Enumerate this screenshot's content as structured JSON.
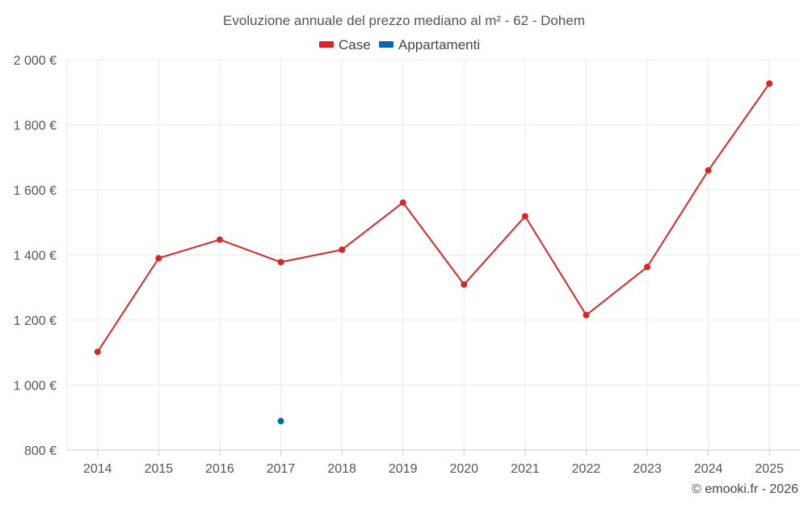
{
  "chart_data": {
    "type": "line",
    "title": "Evoluzione annuale del prezzo mediano al m² - 62 - Dohem",
    "xlabel": "",
    "ylabel": "",
    "categories": [
      "2014",
      "2015",
      "2016",
      "2017",
      "2018",
      "2019",
      "2020",
      "2021",
      "2022",
      "2023",
      "2024",
      "2025"
    ],
    "y_ticks": [
      800,
      1000,
      1200,
      1400,
      1600,
      1800,
      2000
    ],
    "y_tick_labels": [
      "800 €",
      "1 000 €",
      "1 200 €",
      "1 400 €",
      "1 600 €",
      "1 800 €",
      "2 000 €"
    ],
    "ylim": [
      800,
      2000
    ],
    "grid": true,
    "legend_position": "top-center",
    "series": [
      {
        "name": "Case",
        "color": "#d62728",
        "values": [
          1102,
          1390,
          1447,
          1378,
          1416,
          1561,
          1309,
          1519,
          1215,
          1363,
          1660,
          1927
        ]
      },
      {
        "name": "Appartamenti",
        "color": "#0868ac",
        "values": [
          null,
          null,
          null,
          889,
          null,
          null,
          null,
          null,
          null,
          null,
          null,
          null
        ]
      }
    ]
  },
  "credit": "© emooki.fr - 2026"
}
